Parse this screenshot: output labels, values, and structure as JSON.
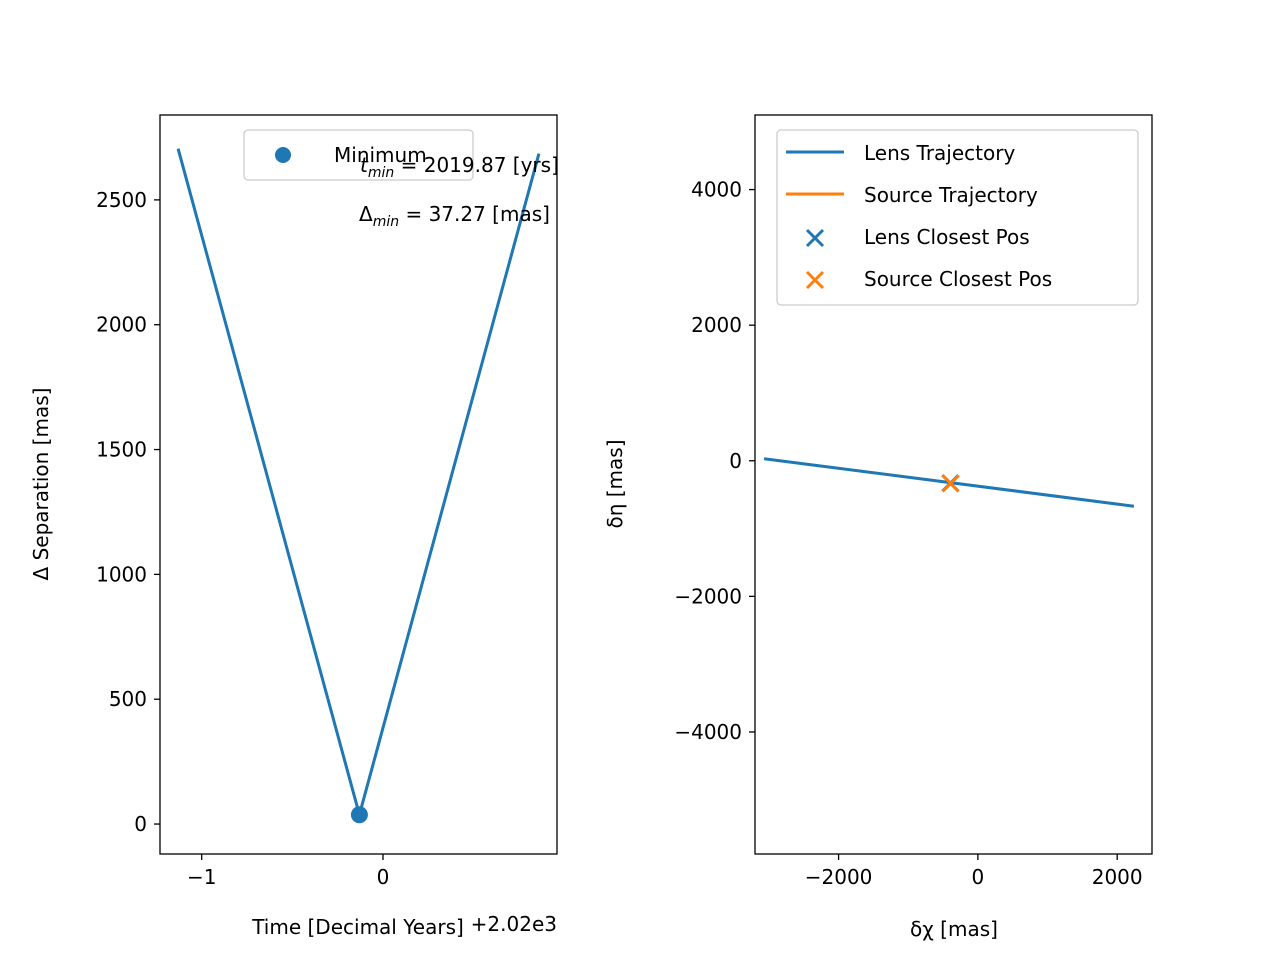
{
  "chart_data": [
    {
      "type": "line",
      "xlabel": "Time [Decimal Years]",
      "ylabel": "Δ Separation [mas]",
      "offset_label": "+2.02e3",
      "xlim": [
        -1.23,
        0.96
      ],
      "ylim": [
        -120,
        2840
      ],
      "xticks": [
        -1,
        0
      ],
      "xtick_labels": [
        "−1",
        "0"
      ],
      "yticks": [
        0,
        500,
        1000,
        1500,
        2000,
        2500
      ],
      "ytick_labels": [
        "0",
        "500",
        "1000",
        "1500",
        "2000",
        "2500"
      ],
      "series": [
        {
          "color": "#1f77b4",
          "x": [
            -1.13,
            -0.13,
            0.86
          ],
          "y": [
            2705,
            37.27,
            2685
          ]
        }
      ],
      "points": [
        {
          "name": "Minimum",
          "x": -0.13,
          "y": 37.27,
          "color": "#1f77b4"
        }
      ],
      "legend": {
        "position": "top-right",
        "entries": [
          "Minimum"
        ]
      },
      "annotations": {
        "tmin_sym": "t",
        "tmin_sub": "min",
        "tmin_rest": " = 2019.87 [yrs]",
        "dmin_sym": "Δ",
        "dmin_sub": "min",
        "dmin_rest": " = 37.27 [mas]"
      }
    },
    {
      "type": "line",
      "xlabel": "δχ [mas]",
      "ylabel": "δη [mas]",
      "xlim": [
        -3200,
        2500
      ],
      "ylim": [
        -5800,
        5100
      ],
      "xticks": [
        -2000,
        0,
        2000
      ],
      "xtick_labels": [
        "−2000",
        "0",
        "2000"
      ],
      "yticks": [
        -4000,
        -2000,
        0,
        2000,
        4000
      ],
      "ytick_labels": [
        "−4000",
        "−2000",
        "0",
        "2000",
        "4000"
      ],
      "series": [
        {
          "name": "Lens Trajectory",
          "color": "#1f77b4",
          "x": [
            -3070,
            2240
          ],
          "y": [
            30,
            -670
          ]
        },
        {
          "name": "Source Trajectory",
          "color": "#ff7f0e",
          "x": [
            -390,
            -390
          ],
          "y": [
            -335,
            -335
          ]
        }
      ],
      "points": [
        {
          "name": "Lens Closest Pos",
          "x": -395,
          "y": -330,
          "color": "#1f77b4",
          "marker": "x"
        },
        {
          "name": "Source Closest Pos",
          "x": -390,
          "y": -335,
          "color": "#ff7f0e",
          "marker": "x"
        }
      ],
      "legend": {
        "position": "top-right",
        "entries": [
          "Lens Trajectory",
          "Source Trajectory",
          "Lens Closest Pos",
          "Source Closest Pos"
        ]
      }
    }
  ]
}
